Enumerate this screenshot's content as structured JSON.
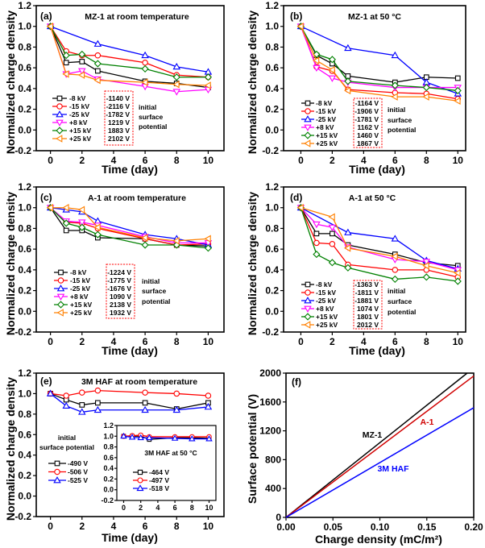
{
  "chart_data": [
    {
      "panel": "(a)",
      "type": "line",
      "title": "MZ-1 at room temperature",
      "xlabel": "Time (day)",
      "ylabel": "Normalized charge density",
      "xlim": [
        -0.9,
        11
      ],
      "ylim": [
        -0.2,
        1.2
      ],
      "xticks": [
        "0",
        "2",
        "4",
        "6",
        "8",
        "10"
      ],
      "yticks": [
        "-0.2",
        "0.0",
        "0.2",
        "0.4",
        "0.6",
        "0.8",
        "1.0",
        "1.2"
      ],
      "x": [
        0,
        1,
        2,
        3,
        6,
        8,
        10
      ],
      "series": [
        {
          "name": "-8 kV",
          "color": "#000000",
          "marker": "square",
          "values": [
            1,
            0.65,
            0.66,
            0.57,
            0.47,
            0.45,
            0.41
          ]
        },
        {
          "name": "-15 kV",
          "color": "#ff0000",
          "marker": "circle",
          "values": [
            1,
            0.76,
            0.72,
            0.72,
            0.65,
            0.53,
            0.51
          ]
        },
        {
          "name": "-25 kV",
          "color": "#0000ff",
          "marker": "triangle-up",
          "values": [
            1,
            null,
            null,
            0.83,
            0.72,
            0.61,
            0.56
          ]
        },
        {
          "name": "+8 kV",
          "color": "#ff00ff",
          "marker": "triangle-down",
          "values": [
            1,
            0.54,
            0.57,
            0.49,
            0.42,
            0.37,
            0.39
          ]
        },
        {
          "name": "+15 kV",
          "color": "#008000",
          "marker": "diamond",
          "values": [
            1,
            0.72,
            0.73,
            0.64,
            0.59,
            0.51,
            0.51
          ]
        },
        {
          "name": "+25 kV",
          "color": "#ff8000",
          "marker": "triangle-left",
          "values": [
            1,
            0.54,
            0.53,
            0.48,
            0.46,
            0.44,
            0.43
          ]
        }
      ],
      "initial_potentials": [
        "-1140 V",
        "-2116 V",
        "-1782 V",
        "1219 V",
        "1883 V",
        "2102 V"
      ],
      "annotation": [
        "initial",
        "surface",
        "potential"
      ]
    },
    {
      "panel": "(b)",
      "type": "line",
      "title": "MZ-1 at 50 °C",
      "xlabel": "Time (day)",
      "ylabel": "Normalized charge density",
      "xlim": [
        -1.1,
        10.5
      ],
      "ylim": [
        -0.2,
        1.2
      ],
      "xticks": [
        "0",
        "2",
        "4",
        "6",
        "8",
        "10"
      ],
      "yticks": [
        "-0.2",
        "0.0",
        "0.2",
        "0.4",
        "0.6",
        "0.8",
        "1.0",
        "1.2"
      ],
      "x": [
        0,
        1,
        2,
        3,
        6,
        8,
        10
      ],
      "series": [
        {
          "name": "-8 kV",
          "color": "#000000",
          "marker": "square",
          "values": [
            1,
            0.72,
            0.64,
            0.52,
            0.46,
            0.51,
            0.5
          ]
        },
        {
          "name": "-15 kV",
          "color": "#ff0000",
          "marker": "circle",
          "values": [
            1,
            0.61,
            0.57,
            0.39,
            0.36,
            0.35,
            0.3
          ]
        },
        {
          "name": "-25 kV",
          "color": "#0000ff",
          "marker": "triangle-up",
          "values": [
            1,
            null,
            null,
            0.79,
            0.72,
            0.46,
            0.35
          ]
        },
        {
          "name": "+8 kV",
          "color": "#ff00ff",
          "marker": "triangle-down",
          "values": [
            1,
            0.6,
            0.5,
            0.46,
            0.41,
            0.41,
            0.41
          ]
        },
        {
          "name": "+15 kV",
          "color": "#008000",
          "marker": "diamond",
          "values": [
            1,
            0.73,
            0.68,
            0.47,
            0.43,
            0.41,
            0.38
          ]
        },
        {
          "name": "+25 kV",
          "color": "#ff8000",
          "marker": "triangle-left",
          "values": [
            1,
            0.67,
            0.58,
            0.38,
            0.32,
            0.32,
            0.28
          ]
        }
      ],
      "initial_potentials": [
        "-1164 V",
        "-1906 V",
        "-1781 V",
        "1162 V",
        "1460 V",
        "1867 V"
      ],
      "annotation": [
        "initial",
        "surface",
        "potential"
      ]
    },
    {
      "panel": "(c)",
      "type": "line",
      "title": "A-1 at room temperature",
      "xlabel": "Time (day)",
      "ylabel": "Normalized charge density",
      "xlim": [
        -0.9,
        11
      ],
      "ylim": [
        -0.2,
        1.2
      ],
      "xticks": [
        "0",
        "2",
        "4",
        "6",
        "8",
        "10"
      ],
      "yticks": [
        "-0.2",
        "0.0",
        "0.2",
        "0.4",
        "0.6",
        "0.8",
        "1.0",
        "1.2"
      ],
      "x": [
        0,
        1,
        2,
        3,
        6,
        8,
        10
      ],
      "series": [
        {
          "name": "-8 kV",
          "color": "#000000",
          "marker": "square",
          "values": [
            1,
            0.78,
            0.78,
            0.71,
            0.7,
            0.64,
            0.63
          ]
        },
        {
          "name": "-15 kV",
          "color": "#ff0000",
          "marker": "circle",
          "values": [
            1,
            0.86,
            0.85,
            0.8,
            0.7,
            0.64,
            0.65
          ]
        },
        {
          "name": "-25 kV",
          "color": "#0000ff",
          "marker": "triangle-up",
          "values": [
            1,
            0.98,
            0.96,
            0.87,
            0.74,
            0.7,
            0.64
          ]
        },
        {
          "name": "+8 kV",
          "color": "#ff00ff",
          "marker": "triangle-down",
          "values": [
            1,
            0.87,
            0.86,
            0.83,
            0.72,
            0.66,
            0.66
          ]
        },
        {
          "name": "+15 kV",
          "color": "#008000",
          "marker": "diamond",
          "values": [
            1,
            0.85,
            0.81,
            0.74,
            0.64,
            0.64,
            0.61
          ]
        },
        {
          "name": "+25 kV",
          "color": "#ff8000",
          "marker": "triangle-left",
          "values": [
            1,
            1.0,
            0.98,
            0.81,
            0.71,
            0.68,
            0.7
          ]
        }
      ],
      "initial_potentials": [
        "-1224 V",
        "-1775 V",
        "-1676 V",
        "1090 V",
        "2138 V",
        "1932 V"
      ],
      "annotation": [
        "initial",
        "surface",
        "potential"
      ]
    },
    {
      "panel": "(d)",
      "type": "line",
      "title": "A-1 at 50 °C",
      "xlabel": "Time (day)",
      "ylabel": "Normalized charge density",
      "xlim": [
        -1.1,
        10.5
      ],
      "ylim": [
        -0.2,
        1.2
      ],
      "xticks": [
        "0",
        "2",
        "4",
        "6",
        "8",
        "10"
      ],
      "yticks": [
        "-0.2",
        "0.0",
        "0.2",
        "0.4",
        "0.6",
        "0.8",
        "1.0",
        "1.2"
      ],
      "x": [
        0,
        1,
        2,
        3,
        6,
        8,
        10
      ],
      "series": [
        {
          "name": "-8 kV",
          "color": "#000000",
          "marker": "square",
          "values": [
            1,
            0.75,
            0.75,
            0.64,
            0.55,
            0.47,
            0.44
          ]
        },
        {
          "name": "-15 kV",
          "color": "#ff0000",
          "marker": "circle",
          "values": [
            1,
            0.66,
            0.65,
            0.45,
            0.4,
            0.4,
            0.33
          ]
        },
        {
          "name": "-25 kV",
          "color": "#0000ff",
          "marker": "triangle-up",
          "values": [
            1,
            null,
            null,
            0.76,
            0.7,
            0.49,
            0.41
          ]
        },
        {
          "name": "+8 kV",
          "color": "#ff00ff",
          "marker": "triangle-down",
          "values": [
            1,
            0.84,
            0.81,
            0.62,
            0.5,
            0.48,
            0.4
          ]
        },
        {
          "name": "+15 kV",
          "color": "#008000",
          "marker": "diamond",
          "values": [
            1,
            0.55,
            0.47,
            0.42,
            0.31,
            0.33,
            0.29
          ]
        },
        {
          "name": "+25 kV",
          "color": "#ff8000",
          "marker": "triangle-left",
          "values": [
            1,
            null,
            0.91,
            0.61,
            0.53,
            0.44,
            0.37
          ]
        }
      ],
      "initial_potentials": [
        "-1363 V",
        "-1811 V",
        "-1881 V",
        "1074 V",
        "1801 V",
        "2012 V"
      ],
      "annotation": [
        "initial",
        "surface",
        "potential"
      ]
    },
    {
      "panel": "(e)",
      "type": "line",
      "title": "3M HAF at room temperature",
      "xlabel": "Time (day)",
      "ylabel": "Normalized charge density",
      "xlim": [
        -0.9,
        11
      ],
      "ylim": [
        -0.2,
        1.2
      ],
      "xticks": [
        "0",
        "2",
        "4",
        "6",
        "8",
        "10"
      ],
      "yticks": [
        "-0.2",
        "0.0",
        "0.2",
        "0.4",
        "0.6",
        "0.8",
        "1.0",
        "1.2"
      ],
      "x": [
        0,
        1,
        2,
        3,
        6,
        8,
        10
      ],
      "legend_title": [
        "initial",
        "surface potential"
      ],
      "series": [
        {
          "name": "-490 V",
          "color": "#000000",
          "marker": "square",
          "values": [
            1,
            0.94,
            0.89,
            0.91,
            0.91,
            0.85,
            0.91
          ]
        },
        {
          "name": "-506 V",
          "color": "#ff0000",
          "marker": "circle",
          "values": [
            1,
            0.98,
            1.01,
            1.03,
            1.01,
            1.0,
            0.98
          ]
        },
        {
          "name": "-525 V",
          "color": "#0000ff",
          "marker": "triangle-up",
          "values": [
            1,
            0.88,
            0.82,
            0.84,
            0.84,
            0.84,
            0.87
          ]
        }
      ],
      "inset": {
        "type": "line",
        "title": "3M HAF at 50 °C",
        "xlim": [
          -0.8,
          10.8
        ],
        "ylim": [
          -0.2,
          1.2
        ],
        "xticks": [
          "0",
          "2",
          "4",
          "6",
          "8",
          "10"
        ],
        "yticks": [
          "-0.2",
          "0.0",
          "0.2",
          "0.4",
          "0.6",
          "0.8",
          "1.0",
          "1.2"
        ],
        "x": [
          0,
          1,
          2,
          3,
          6,
          8,
          10
        ],
        "series": [
          {
            "name": "-464 V",
            "color": "#000000",
            "marker": "square",
            "values": [
              1,
              1.0,
              1.0,
              0.94,
              0.97,
              0.97,
              0.96
            ]
          },
          {
            "name": "-497 V",
            "color": "#ff0000",
            "marker": "circle",
            "values": [
              1,
              1.01,
              1.02,
              0.99,
              0.99,
              0.99,
              0.99
            ]
          },
          {
            "name": "-518 V",
            "color": "#0000ff",
            "marker": "triangle-up",
            "values": [
              1,
              0.98,
              0.97,
              0.97,
              0.96,
              0.95,
              0.95
            ]
          }
        ]
      }
    },
    {
      "panel": "(f)",
      "type": "line",
      "xlabel": "Charge density (mC/m²)",
      "ylabel": "Surface potential (V)",
      "xlim": [
        0,
        0.2
      ],
      "ylim": [
        0,
        2000
      ],
      "xticks": [
        "0.00",
        "0.05",
        "0.10",
        "0.15",
        "0.20"
      ],
      "yticks": [
        "0",
        "400",
        "800",
        "1200",
        "1600",
        "2000"
      ],
      "series": [
        {
          "name": "MZ-1",
          "color": "#000000",
          "x": [
            0,
            0.193
          ],
          "values": [
            0,
            2000
          ]
        },
        {
          "name": "A-1",
          "color": "#d00000",
          "x": [
            0,
            0.2
          ],
          "values": [
            0,
            1960
          ]
        },
        {
          "name": "3M HAF",
          "color": "#0000ff",
          "x": [
            0,
            0.2
          ],
          "values": [
            0,
            1520
          ]
        }
      ]
    }
  ]
}
